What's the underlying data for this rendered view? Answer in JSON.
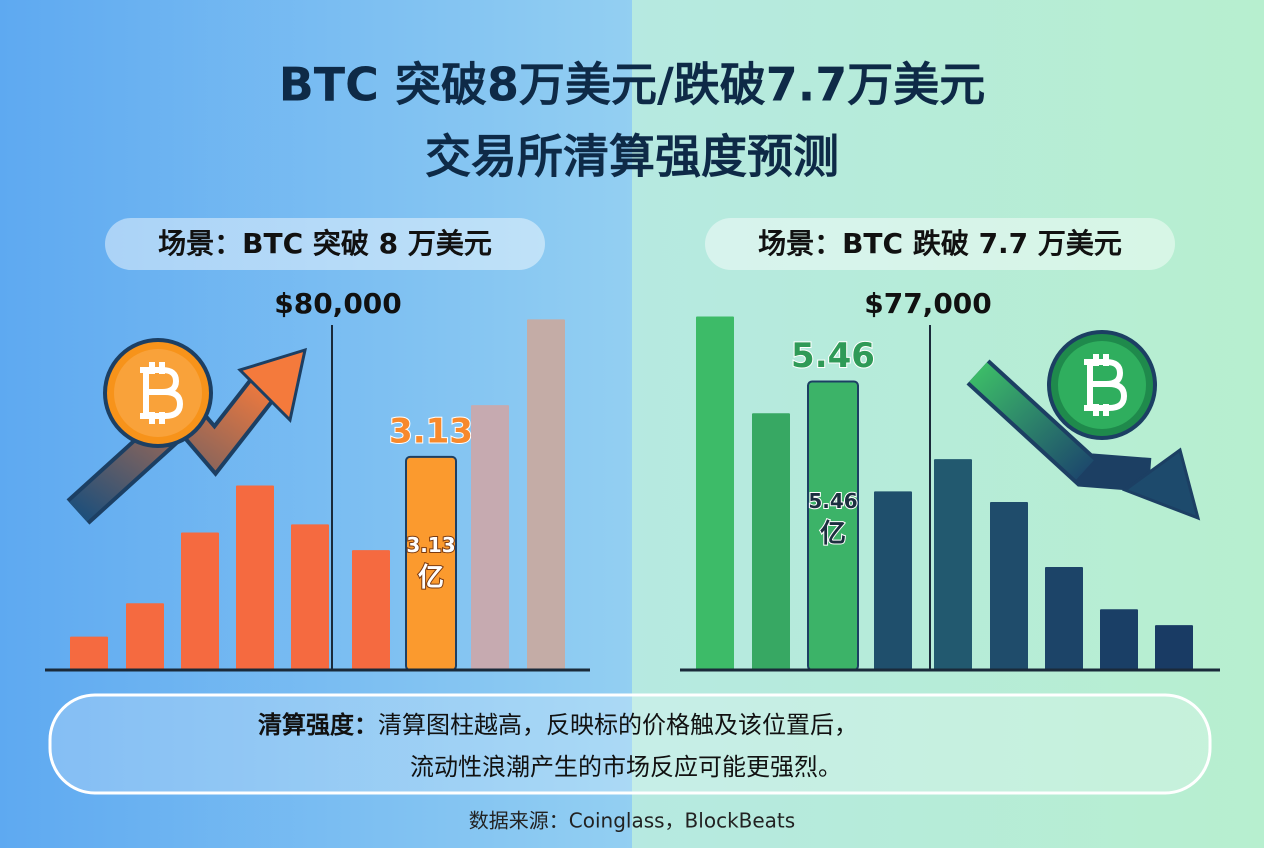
{
  "title": [
    "BTC 突破8万美元/跌破7.7万美元",
    "交易所清算强度预测"
  ],
  "chart_data": [
    {
      "type": "bar",
      "title": "场景：BTC 突破 8 万美元",
      "marker_label": "$80,000",
      "values": [
        0.49,
        0.98,
        2.02,
        2.71,
        2.14,
        1.76,
        3.13,
        3.89,
        5.15
      ],
      "value_labels": [
        null,
        null,
        null,
        null,
        null,
        null,
        "3.13",
        null,
        null
      ],
      "unit": "亿",
      "colors": [
        "#f56a40",
        "#f56a40",
        "#f56a40",
        "#f56a40",
        "#f56a40",
        "#f56a40",
        "#fb9a2e",
        "#c6aab0",
        "#c4aca6"
      ],
      "label_color": "#f7892c",
      "ylim": [
        0,
        5.2
      ]
    },
    {
      "type": "bar",
      "title": "场景：BTC 跌破 7.7 万美元",
      "marker_label": "$77,000",
      "values": [
        6.69,
        4.86,
        5.46,
        3.38,
        3.99,
        3.18,
        1.95,
        1.15,
        0.85
      ],
      "value_labels": [
        null,
        null,
        "5.46",
        null,
        null,
        null,
        null,
        null,
        null
      ],
      "unit": "亿",
      "colors": [
        "#3dbb68",
        "#37a863",
        "#3cb368",
        "#1f4f6c",
        "#22596f",
        "#1f4c6b",
        "#1c4468",
        "#1a3f66",
        "#193b64"
      ],
      "label_color": "#2f9a57",
      "ylim": [
        0,
        6.7
      ]
    }
  ],
  "note": {
    "label": "清算强度：",
    "lines": [
      "清算图柱越高，反映标的价格触及该位置后，",
      "流动性浪潮产生的市场反应可能更强烈。"
    ]
  },
  "source": "数据来源：Coinglass，BlockBeats"
}
